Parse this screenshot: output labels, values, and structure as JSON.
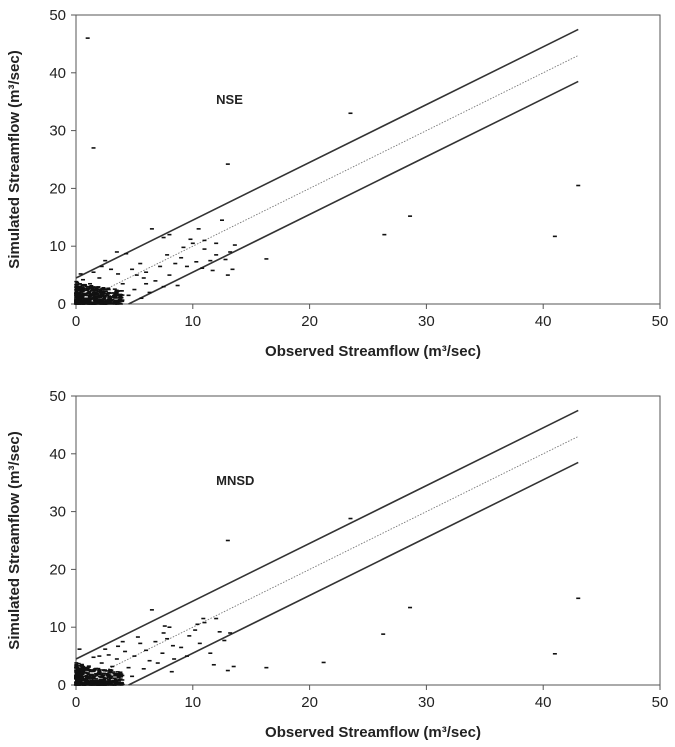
{
  "chart_data": [
    {
      "type": "scatter",
      "annotation": "NSE",
      "xlabel": "Observed Streamflow (m³/sec)",
      "ylabel": "Simulated Streamflow (m³/sec)",
      "xlim": [
        0,
        50
      ],
      "ylim": [
        0,
        50
      ],
      "xticks": [
        "0",
        "10",
        "20",
        "30",
        "40",
        "50"
      ],
      "yticks": [
        "0",
        "10",
        "20",
        "30",
        "40",
        "50"
      ],
      "grid": false,
      "lines": [
        {
          "style": "solid",
          "x": [
            0,
            43
          ],
          "y": [
            4.5,
            47.5
          ]
        },
        {
          "style": "dotted",
          "x": [
            0,
            43
          ],
          "y": [
            0,
            43
          ]
        },
        {
          "style": "solid",
          "x": [
            4.5,
            43
          ],
          "y": [
            0,
            38.5
          ]
        }
      ],
      "points": [
        [
          1,
          46
        ],
        [
          1.5,
          27
        ],
        [
          13,
          24.2
        ],
        [
          23.5,
          33
        ],
        [
          28.6,
          15.2
        ],
        [
          26.4,
          12
        ],
        [
          41,
          11.7
        ],
        [
          43,
          20.5
        ],
        [
          16.3,
          7.8
        ],
        [
          12.5,
          14.5
        ],
        [
          10.5,
          13
        ],
        [
          6.5,
          13
        ],
        [
          7.5,
          11.5
        ],
        [
          8,
          12
        ],
        [
          11,
          11
        ],
        [
          12,
          10.5
        ],
        [
          13.2,
          9
        ],
        [
          13.6,
          10.2
        ],
        [
          13.4,
          6
        ],
        [
          13,
          5
        ],
        [
          11.5,
          7.5
        ],
        [
          12,
          8.5
        ],
        [
          10.8,
          6.2
        ],
        [
          11,
          9.5
        ],
        [
          9,
          8
        ],
        [
          9.5,
          6.5
        ],
        [
          8.5,
          7
        ],
        [
          7.2,
          6.5
        ],
        [
          6.8,
          4
        ],
        [
          7.5,
          3
        ],
        [
          6,
          5.5
        ],
        [
          5.5,
          7
        ],
        [
          4.3,
          8.7
        ],
        [
          3.5,
          9
        ],
        [
          2.5,
          7.5
        ],
        [
          5,
          2.5
        ],
        [
          4.5,
          1.5
        ],
        [
          6,
          3.5
        ],
        [
          8,
          5
        ],
        [
          9.2,
          9.8
        ],
        [
          10,
          10.5
        ],
        [
          0.4,
          5.2
        ],
        [
          0.6,
          4.2
        ],
        [
          1.2,
          3.5
        ],
        [
          2,
          4.5
        ],
        [
          3,
          6
        ],
        [
          3.6,
          5.2
        ],
        [
          4.8,
          6
        ],
        [
          5.8,
          4.5
        ],
        [
          6.3,
          2
        ],
        [
          2.8,
          2.5
        ],
        [
          1.8,
          1.8
        ],
        [
          3.2,
          1.2
        ],
        [
          0.5,
          2.5
        ],
        [
          1.5,
          5.5
        ],
        [
          8.7,
          3.2
        ],
        [
          10.3,
          7.3
        ],
        [
          12.8,
          7.7
        ],
        [
          5.2,
          5
        ],
        [
          4,
          3.5
        ],
        [
          2.2,
          6.5
        ],
        [
          7.8,
          8.5
        ],
        [
          9.8,
          11.2
        ],
        [
          11.7,
          5.8
        ],
        [
          3.8,
          0.8
        ],
        [
          5.6,
          1
        ]
      ],
      "dense_cluster": {
        "x_range": [
          0,
          4
        ],
        "y_range": [
          0,
          4
        ],
        "count": 480
      }
    },
    {
      "type": "scatter",
      "annotation": "MNSD",
      "xlabel": "Observed Streamflow (m³/sec)",
      "ylabel": "Simulated Streamflow (m³/sec)",
      "xlim": [
        0,
        50
      ],
      "ylim": [
        0,
        50
      ],
      "xticks": [
        "0",
        "10",
        "20",
        "30",
        "40",
        "50"
      ],
      "yticks": [
        "0",
        "10",
        "20",
        "30",
        "40",
        "50"
      ],
      "grid": false,
      "lines": [
        {
          "style": "solid",
          "x": [
            0,
            43
          ],
          "y": [
            4.5,
            47.5
          ]
        },
        {
          "style": "dotted",
          "x": [
            0,
            43
          ],
          "y": [
            0,
            43
          ]
        },
        {
          "style": "solid",
          "x": [
            4.5,
            43
          ],
          "y": [
            0,
            38.5
          ]
        }
      ],
      "points": [
        [
          13,
          25
        ],
        [
          23.5,
          28.8
        ],
        [
          28.6,
          13.4
        ],
        [
          26.3,
          8.8
        ],
        [
          43,
          15
        ],
        [
          41,
          5.4
        ],
        [
          21.2,
          3.9
        ],
        [
          16.3,
          3
        ],
        [
          13.2,
          9
        ],
        [
          13.5,
          3.2
        ],
        [
          13,
          2.5
        ],
        [
          12,
          11.5
        ],
        [
          11,
          10.8
        ],
        [
          10.4,
          10.5
        ],
        [
          10.2,
          9.5
        ],
        [
          11.5,
          5.5
        ],
        [
          11.8,
          3.5
        ],
        [
          12.3,
          9.2
        ],
        [
          6.5,
          13
        ],
        [
          8,
          10
        ],
        [
          7.5,
          9
        ],
        [
          7.8,
          8
        ],
        [
          8.3,
          6.8
        ],
        [
          7.4,
          5.5
        ],
        [
          8.4,
          4.5
        ],
        [
          8.2,
          2.3
        ],
        [
          9,
          6.5
        ],
        [
          9.5,
          5
        ],
        [
          6,
          6
        ],
        [
          5.5,
          7.2
        ],
        [
          5,
          5
        ],
        [
          4.5,
          3
        ],
        [
          3.6,
          6.7
        ],
        [
          4,
          7.5
        ],
        [
          3.5,
          4.5
        ],
        [
          2.8,
          5.2
        ],
        [
          2.5,
          6.2
        ],
        [
          2,
          5
        ],
        [
          1.5,
          4.8
        ],
        [
          0.5,
          3.5
        ],
        [
          6.8,
          7.5
        ],
        [
          7,
          3.8
        ],
        [
          5.8,
          2.8
        ],
        [
          6.3,
          4.2
        ],
        [
          4.8,
          1.5
        ],
        [
          9.7,
          8.5
        ],
        [
          10.6,
          7.2
        ],
        [
          12.7,
          7.7
        ],
        [
          5.3,
          8.3
        ],
        [
          3.1,
          3.2
        ],
        [
          7.6,
          10.2
        ],
        [
          10.9,
          11.5
        ],
        [
          4.2,
          5.8
        ],
        [
          2.2,
          3.8
        ],
        [
          1,
          2.8
        ],
        [
          0.3,
          6.2
        ]
      ],
      "dense_cluster": {
        "x_range": [
          0,
          4
        ],
        "y_range": [
          0,
          4
        ],
        "count": 480
      }
    }
  ]
}
